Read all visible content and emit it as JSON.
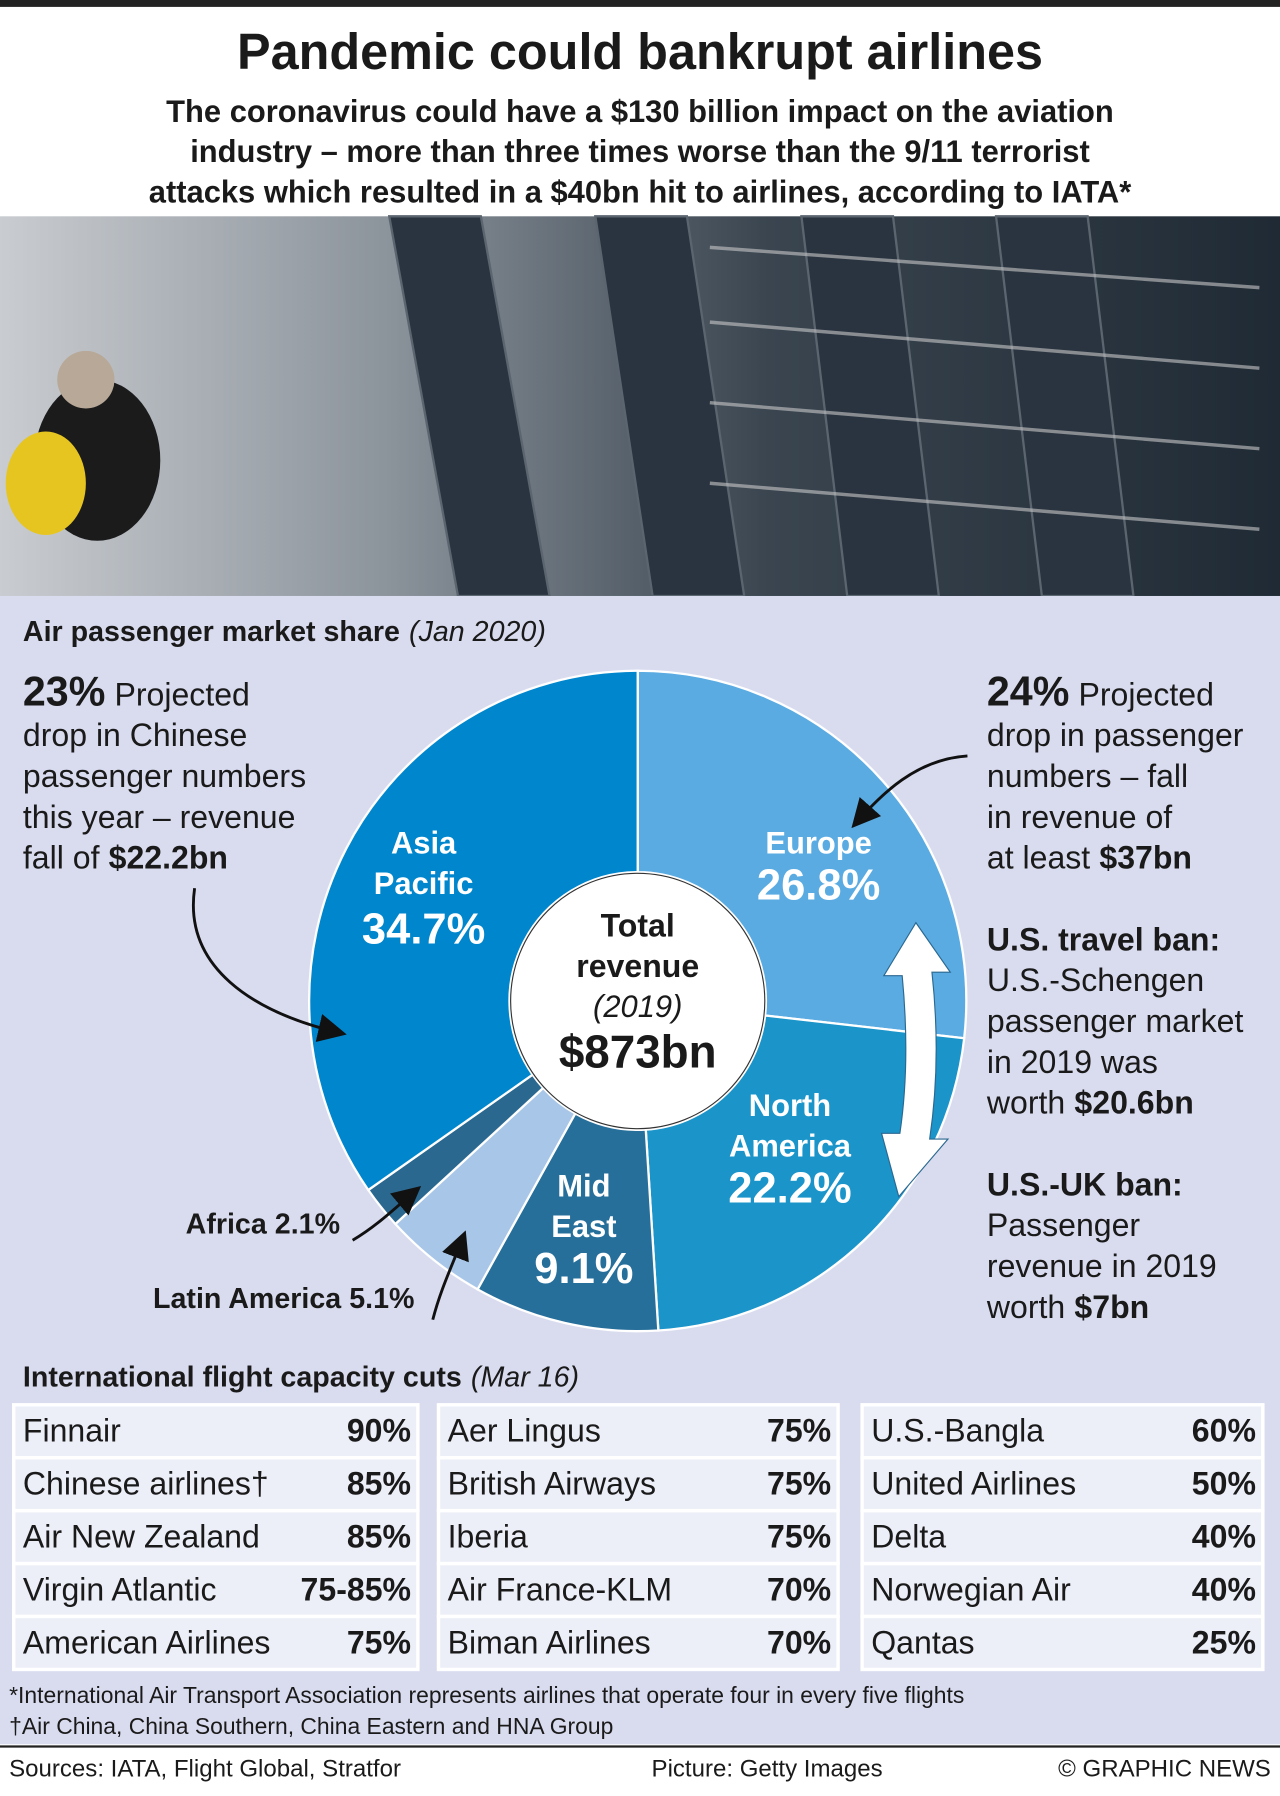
{
  "header": {
    "title": "Pandemic could bankrupt airlines",
    "subtitle": [
      "The coronavirus could have a $130 billion impact on the aviation",
      "industry – more than three times worse than the 9/11 terrorist",
      "attacks which resulted in a $40bn hit to airlines, according to IATA*"
    ]
  },
  "chart_data": {
    "type": "pie",
    "title": "Air passenger market share",
    "subtitle": "(Jan 2020)",
    "categories": [
      "Europe",
      "North America",
      "Mid East",
      "Latin America",
      "Africa",
      "Asia Pacific"
    ],
    "values": [
      26.8,
      22.2,
      9.1,
      5.1,
      2.1,
      34.7
    ],
    "value_labels": [
      "26.8%",
      "22.2%",
      "9.1%",
      "5.1%",
      "2.1%",
      "34.7%"
    ],
    "colors": [
      "#5aabe2",
      "#1a94c9",
      "#276f9b",
      "#a8c6e8",
      "#2b6890",
      "#0086cd"
    ],
    "center_label": [
      "Total",
      "revenue"
    ],
    "center_note": "(2019)",
    "center_value": "$873bn"
  },
  "annotations": [
    {
      "figure": "23%",
      "lines": [
        "Projected",
        "drop in Chinese",
        "passenger numbers",
        "this year – revenue",
        "fall of"
      ],
      "amount": "$22.2bn"
    },
    {
      "figure": "24%",
      "lines": [
        "Projected",
        "drop in passenger",
        "numbers – fall",
        "in revenue of",
        "at least"
      ],
      "amount": "$37bn"
    },
    {
      "heading": "U.S. travel ban:",
      "lines": [
        "U.S.-Schengen",
        "passenger market",
        "in 2019 was",
        "worth"
      ],
      "amount": "$20.6bn"
    },
    {
      "heading": "U.S.-UK ban:",
      "lines": [
        "Passenger",
        "revenue in 2019",
        "worth"
      ],
      "amount": "$7bn"
    }
  ],
  "table": {
    "title": "International flight capacity cuts",
    "note": "(Mar 16)",
    "columns": [
      [
        [
          "Finnair",
          "90%"
        ],
        [
          "Chinese airlines†",
          "85%"
        ],
        [
          "Air New Zealand",
          "85%"
        ],
        [
          "Virgin Atlantic",
          "75-85%"
        ],
        [
          "American Airlines",
          "75%"
        ]
      ],
      [
        [
          "Aer Lingus",
          "75%"
        ],
        [
          "British Airways",
          "75%"
        ],
        [
          "Iberia",
          "75%"
        ],
        [
          "Air France-KLM",
          "70%"
        ],
        [
          "Biman Airlines",
          "70%"
        ]
      ],
      [
        [
          "U.S.-Bangla",
          "60%"
        ],
        [
          "United Airlines",
          "50%"
        ],
        [
          "Delta",
          "40%"
        ],
        [
          "Norwegian Air",
          "40%"
        ],
        [
          "Qantas",
          "25%"
        ]
      ]
    ]
  },
  "footnotes": [
    "*International Air Transport Association represents airlines that operate four in every five flights",
    "†Air China, China Southern, China Eastern and HNA Group"
  ],
  "footer": {
    "sources": "Sources: IATA, Flight Global, Stratfor",
    "picture": "Picture: Getty Images",
    "credit": "© GRAPHIC NEWS"
  }
}
